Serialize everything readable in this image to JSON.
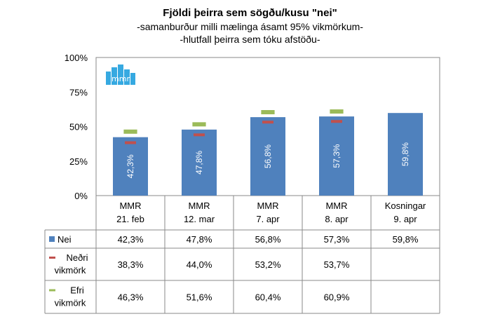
{
  "title": "Fjöldi þeirra sem sögðu/kusu \"nei\"",
  "subtitle_1": "-samanburður milli mælinga ásamt 95% vikmörkum-",
  "subtitle_2": "-hlutfall þeirra sem tóku afstöðu-",
  "logo_text": "mmr",
  "colors": {
    "bar": "#4f81bd",
    "lower_marker": "#c0504d",
    "upper_marker": "#9bbb59",
    "border": "#8a8a8a",
    "logo": "#36a9e1"
  },
  "chart_data": {
    "type": "bar",
    "categories": [
      [
        "MMR",
        "21. feb"
      ],
      [
        "MMR",
        "12. mar"
      ],
      [
        "MMR",
        "7. apr"
      ],
      [
        "MMR",
        "8. apr"
      ],
      [
        "Kosningar",
        "9. apr"
      ]
    ],
    "series": [
      {
        "name": "Nei",
        "values": [
          42.3,
          47.8,
          56.8,
          57.3,
          59.8
        ],
        "labels": [
          "42,3%",
          "47,8%",
          "56,8%",
          "57,3%",
          "59,8%"
        ]
      },
      {
        "name": "Neðri vikmörk",
        "values": [
          38.3,
          44.0,
          53.2,
          53.7,
          null
        ],
        "labels": [
          "38,3%",
          "44,0%",
          "53,2%",
          "53,7%",
          ""
        ]
      },
      {
        "name": "Efri vikmörk",
        "values": [
          46.3,
          51.6,
          60.4,
          60.9,
          null
        ],
        "labels": [
          "46,3%",
          "51,6%",
          "60,4%",
          "60,9%",
          ""
        ]
      }
    ],
    "row_labels": [
      [
        "Nei"
      ],
      [
        "Neðri",
        "vikmörk"
      ],
      [
        "Efri",
        "vikmörk"
      ]
    ],
    "yticks": [
      "0%",
      "25%",
      "50%",
      "75%",
      "100%"
    ],
    "ylim": [
      0,
      100
    ],
    "legend": "data-table"
  }
}
